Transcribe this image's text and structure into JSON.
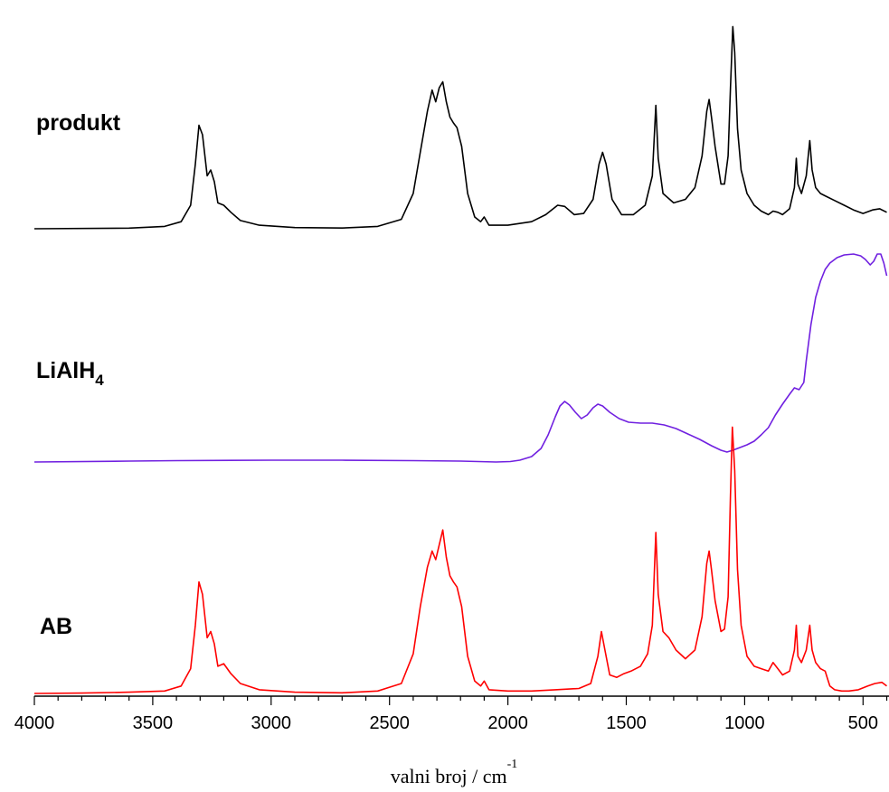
{
  "chart_data": {
    "type": "line",
    "title": "",
    "xlabel": "valni broj / cm",
    "xlabel_superscript": "-1",
    "xlim": [
      4000,
      400
    ],
    "x_reversed": true,
    "x_ticks": [
      "4000",
      "3500",
      "3000",
      "2500",
      "2000",
      "1500",
      "1000",
      "500"
    ],
    "ylabel": "",
    "grid": false,
    "legend": "none",
    "series": [
      {
        "name": "produkt",
        "name_display": "produkt",
        "color": "#000000",
        "points": [
          [
            4000,
            0.0
          ],
          [
            3600,
            0.005
          ],
          [
            3450,
            0.02
          ],
          [
            3380,
            0.06
          ],
          [
            3340,
            0.2
          ],
          [
            3320,
            0.55
          ],
          [
            3305,
            0.88
          ],
          [
            3290,
            0.8
          ],
          [
            3270,
            0.45
          ],
          [
            3255,
            0.5
          ],
          [
            3240,
            0.4
          ],
          [
            3225,
            0.22
          ],
          [
            3200,
            0.2
          ],
          [
            3170,
            0.14
          ],
          [
            3130,
            0.07
          ],
          [
            3050,
            0.03
          ],
          [
            2900,
            0.01
          ],
          [
            2700,
            0.006
          ],
          [
            2550,
            0.02
          ],
          [
            2450,
            0.08
          ],
          [
            2400,
            0.3
          ],
          [
            2370,
            0.65
          ],
          [
            2340,
            1.0
          ],
          [
            2320,
            1.18
          ],
          [
            2305,
            1.08
          ],
          [
            2290,
            1.2
          ],
          [
            2275,
            1.25
          ],
          [
            2260,
            1.08
          ],
          [
            2245,
            0.95
          ],
          [
            2230,
            0.9
          ],
          [
            2215,
            0.86
          ],
          [
            2195,
            0.7
          ],
          [
            2170,
            0.3
          ],
          [
            2140,
            0.1
          ],
          [
            2115,
            0.06
          ],
          [
            2100,
            0.1
          ],
          [
            2080,
            0.03
          ],
          [
            2000,
            0.03
          ],
          [
            1900,
            0.06
          ],
          [
            1840,
            0.12
          ],
          [
            1790,
            0.2
          ],
          [
            1760,
            0.19
          ],
          [
            1720,
            0.12
          ],
          [
            1680,
            0.13
          ],
          [
            1640,
            0.25
          ],
          [
            1615,
            0.55
          ],
          [
            1600,
            0.65
          ],
          [
            1585,
            0.55
          ],
          [
            1560,
            0.25
          ],
          [
            1520,
            0.12
          ],
          [
            1470,
            0.12
          ],
          [
            1420,
            0.2
          ],
          [
            1390,
            0.45
          ],
          [
            1375,
            1.05
          ],
          [
            1365,
            0.6
          ],
          [
            1345,
            0.3
          ],
          [
            1300,
            0.22
          ],
          [
            1250,
            0.25
          ],
          [
            1210,
            0.35
          ],
          [
            1180,
            0.62
          ],
          [
            1160,
            1.0
          ],
          [
            1150,
            1.1
          ],
          [
            1140,
            0.95
          ],
          [
            1125,
            0.7
          ],
          [
            1100,
            0.38
          ],
          [
            1085,
            0.38
          ],
          [
            1070,
            0.62
          ],
          [
            1060,
            1.2
          ],
          [
            1050,
            1.72
          ],
          [
            1042,
            1.5
          ],
          [
            1030,
            0.85
          ],
          [
            1015,
            0.5
          ],
          [
            990,
            0.3
          ],
          [
            960,
            0.2
          ],
          [
            930,
            0.15
          ],
          [
            900,
            0.12
          ],
          [
            880,
            0.15
          ],
          [
            860,
            0.14
          ],
          [
            840,
            0.12
          ],
          [
            810,
            0.17
          ],
          [
            790,
            0.35
          ],
          [
            782,
            0.6
          ],
          [
            775,
            0.38
          ],
          [
            760,
            0.3
          ],
          [
            740,
            0.45
          ],
          [
            725,
            0.75
          ],
          [
            715,
            0.5
          ],
          [
            700,
            0.35
          ],
          [
            680,
            0.3
          ],
          [
            660,
            0.28
          ],
          [
            620,
            0.24
          ],
          [
            580,
            0.2
          ],
          [
            540,
            0.16
          ],
          [
            500,
            0.13
          ],
          [
            460,
            0.16
          ],
          [
            430,
            0.17
          ],
          [
            400,
            0.14
          ]
        ]
      },
      {
        "name": "LiAlH4",
        "name_display": "LiAlH",
        "name_subscript": "4",
        "color": "#7020e0",
        "points": [
          [
            4000,
            0.0
          ],
          [
            3600,
            0.01
          ],
          [
            3400,
            0.015
          ],
          [
            3000,
            0.02
          ],
          [
            2700,
            0.02
          ],
          [
            2400,
            0.015
          ],
          [
            2200,
            0.01
          ],
          [
            2050,
            0.0
          ],
          [
            1990,
            0.005
          ],
          [
            1950,
            0.02
          ],
          [
            1900,
            0.06
          ],
          [
            1860,
            0.15
          ],
          [
            1830,
            0.3
          ],
          [
            1800,
            0.5
          ],
          [
            1780,
            0.62
          ],
          [
            1760,
            0.67
          ],
          [
            1740,
            0.63
          ],
          [
            1715,
            0.55
          ],
          [
            1690,
            0.48
          ],
          [
            1665,
            0.52
          ],
          [
            1640,
            0.6
          ],
          [
            1620,
            0.64
          ],
          [
            1600,
            0.62
          ],
          [
            1570,
            0.55
          ],
          [
            1530,
            0.48
          ],
          [
            1490,
            0.44
          ],
          [
            1440,
            0.43
          ],
          [
            1390,
            0.43
          ],
          [
            1340,
            0.41
          ],
          [
            1290,
            0.37
          ],
          [
            1240,
            0.31
          ],
          [
            1190,
            0.25
          ],
          [
            1140,
            0.18
          ],
          [
            1100,
            0.13
          ],
          [
            1075,
            0.11
          ],
          [
            1050,
            0.13
          ],
          [
            1020,
            0.16
          ],
          [
            990,
            0.19
          ],
          [
            960,
            0.23
          ],
          [
            930,
            0.3
          ],
          [
            900,
            0.38
          ],
          [
            870,
            0.52
          ],
          [
            840,
            0.64
          ],
          [
            810,
            0.75
          ],
          [
            790,
            0.82
          ],
          [
            770,
            0.8
          ],
          [
            750,
            0.88
          ],
          [
            740,
            1.12
          ],
          [
            720,
            1.52
          ],
          [
            700,
            1.82
          ],
          [
            680,
            2.0
          ],
          [
            660,
            2.13
          ],
          [
            640,
            2.2
          ],
          [
            610,
            2.26
          ],
          [
            580,
            2.29
          ],
          [
            540,
            2.3
          ],
          [
            510,
            2.28
          ],
          [
            490,
            2.24
          ],
          [
            470,
            2.18
          ],
          [
            455,
            2.22
          ],
          [
            440,
            2.3
          ],
          [
            425,
            2.3
          ],
          [
            412,
            2.2
          ],
          [
            400,
            2.06
          ]
        ]
      },
      {
        "name": "AB",
        "name_display": "AB",
        "color": "#ff0000",
        "points": [
          [
            4000,
            0.0
          ],
          [
            3800,
            0.003
          ],
          [
            3600,
            0.01
          ],
          [
            3450,
            0.02
          ],
          [
            3380,
            0.06
          ],
          [
            3340,
            0.2
          ],
          [
            3320,
            0.55
          ],
          [
            3305,
            0.9
          ],
          [
            3290,
            0.8
          ],
          [
            3270,
            0.45
          ],
          [
            3255,
            0.5
          ],
          [
            3240,
            0.4
          ],
          [
            3225,
            0.22
          ],
          [
            3200,
            0.24
          ],
          [
            3170,
            0.16
          ],
          [
            3130,
            0.08
          ],
          [
            3050,
            0.03
          ],
          [
            2900,
            0.01
          ],
          [
            2700,
            0.005
          ],
          [
            2550,
            0.02
          ],
          [
            2450,
            0.08
          ],
          [
            2400,
            0.32
          ],
          [
            2370,
            0.7
          ],
          [
            2340,
            1.02
          ],
          [
            2320,
            1.15
          ],
          [
            2305,
            1.08
          ],
          [
            2290,
            1.2
          ],
          [
            2275,
            1.32
          ],
          [
            2260,
            1.1
          ],
          [
            2245,
            0.95
          ],
          [
            2230,
            0.9
          ],
          [
            2215,
            0.86
          ],
          [
            2195,
            0.7
          ],
          [
            2170,
            0.3
          ],
          [
            2140,
            0.1
          ],
          [
            2115,
            0.06
          ],
          [
            2100,
            0.1
          ],
          [
            2080,
            0.03
          ],
          [
            2000,
            0.02
          ],
          [
            1900,
            0.02
          ],
          [
            1800,
            0.03
          ],
          [
            1700,
            0.04
          ],
          [
            1650,
            0.08
          ],
          [
            1620,
            0.3
          ],
          [
            1605,
            0.5
          ],
          [
            1590,
            0.35
          ],
          [
            1570,
            0.15
          ],
          [
            1540,
            0.13
          ],
          [
            1510,
            0.16
          ],
          [
            1480,
            0.18
          ],
          [
            1440,
            0.22
          ],
          [
            1410,
            0.32
          ],
          [
            1390,
            0.55
          ],
          [
            1375,
            1.3
          ],
          [
            1365,
            0.8
          ],
          [
            1345,
            0.5
          ],
          [
            1320,
            0.45
          ],
          [
            1290,
            0.35
          ],
          [
            1250,
            0.28
          ],
          [
            1210,
            0.35
          ],
          [
            1180,
            0.62
          ],
          [
            1160,
            1.05
          ],
          [
            1150,
            1.15
          ],
          [
            1140,
            1.0
          ],
          [
            1125,
            0.75
          ],
          [
            1100,
            0.5
          ],
          [
            1085,
            0.52
          ],
          [
            1070,
            0.78
          ],
          [
            1060,
            1.6
          ],
          [
            1052,
            2.15
          ],
          [
            1042,
            1.8
          ],
          [
            1030,
            1.0
          ],
          [
            1015,
            0.55
          ],
          [
            990,
            0.3
          ],
          [
            960,
            0.22
          ],
          [
            930,
            0.2
          ],
          [
            900,
            0.18
          ],
          [
            880,
            0.25
          ],
          [
            860,
            0.2
          ],
          [
            840,
            0.15
          ],
          [
            810,
            0.18
          ],
          [
            790,
            0.35
          ],
          [
            782,
            0.55
          ],
          [
            775,
            0.3
          ],
          [
            760,
            0.25
          ],
          [
            740,
            0.35
          ],
          [
            725,
            0.55
          ],
          [
            715,
            0.35
          ],
          [
            700,
            0.25
          ],
          [
            680,
            0.2
          ],
          [
            660,
            0.18
          ],
          [
            650,
            0.12
          ],
          [
            640,
            0.06
          ],
          [
            620,
            0.03
          ],
          [
            590,
            0.02
          ],
          [
            560,
            0.02
          ],
          [
            520,
            0.03
          ],
          [
            480,
            0.06
          ],
          [
            450,
            0.08
          ],
          [
            420,
            0.09
          ],
          [
            400,
            0.06
          ]
        ]
      }
    ]
  }
}
